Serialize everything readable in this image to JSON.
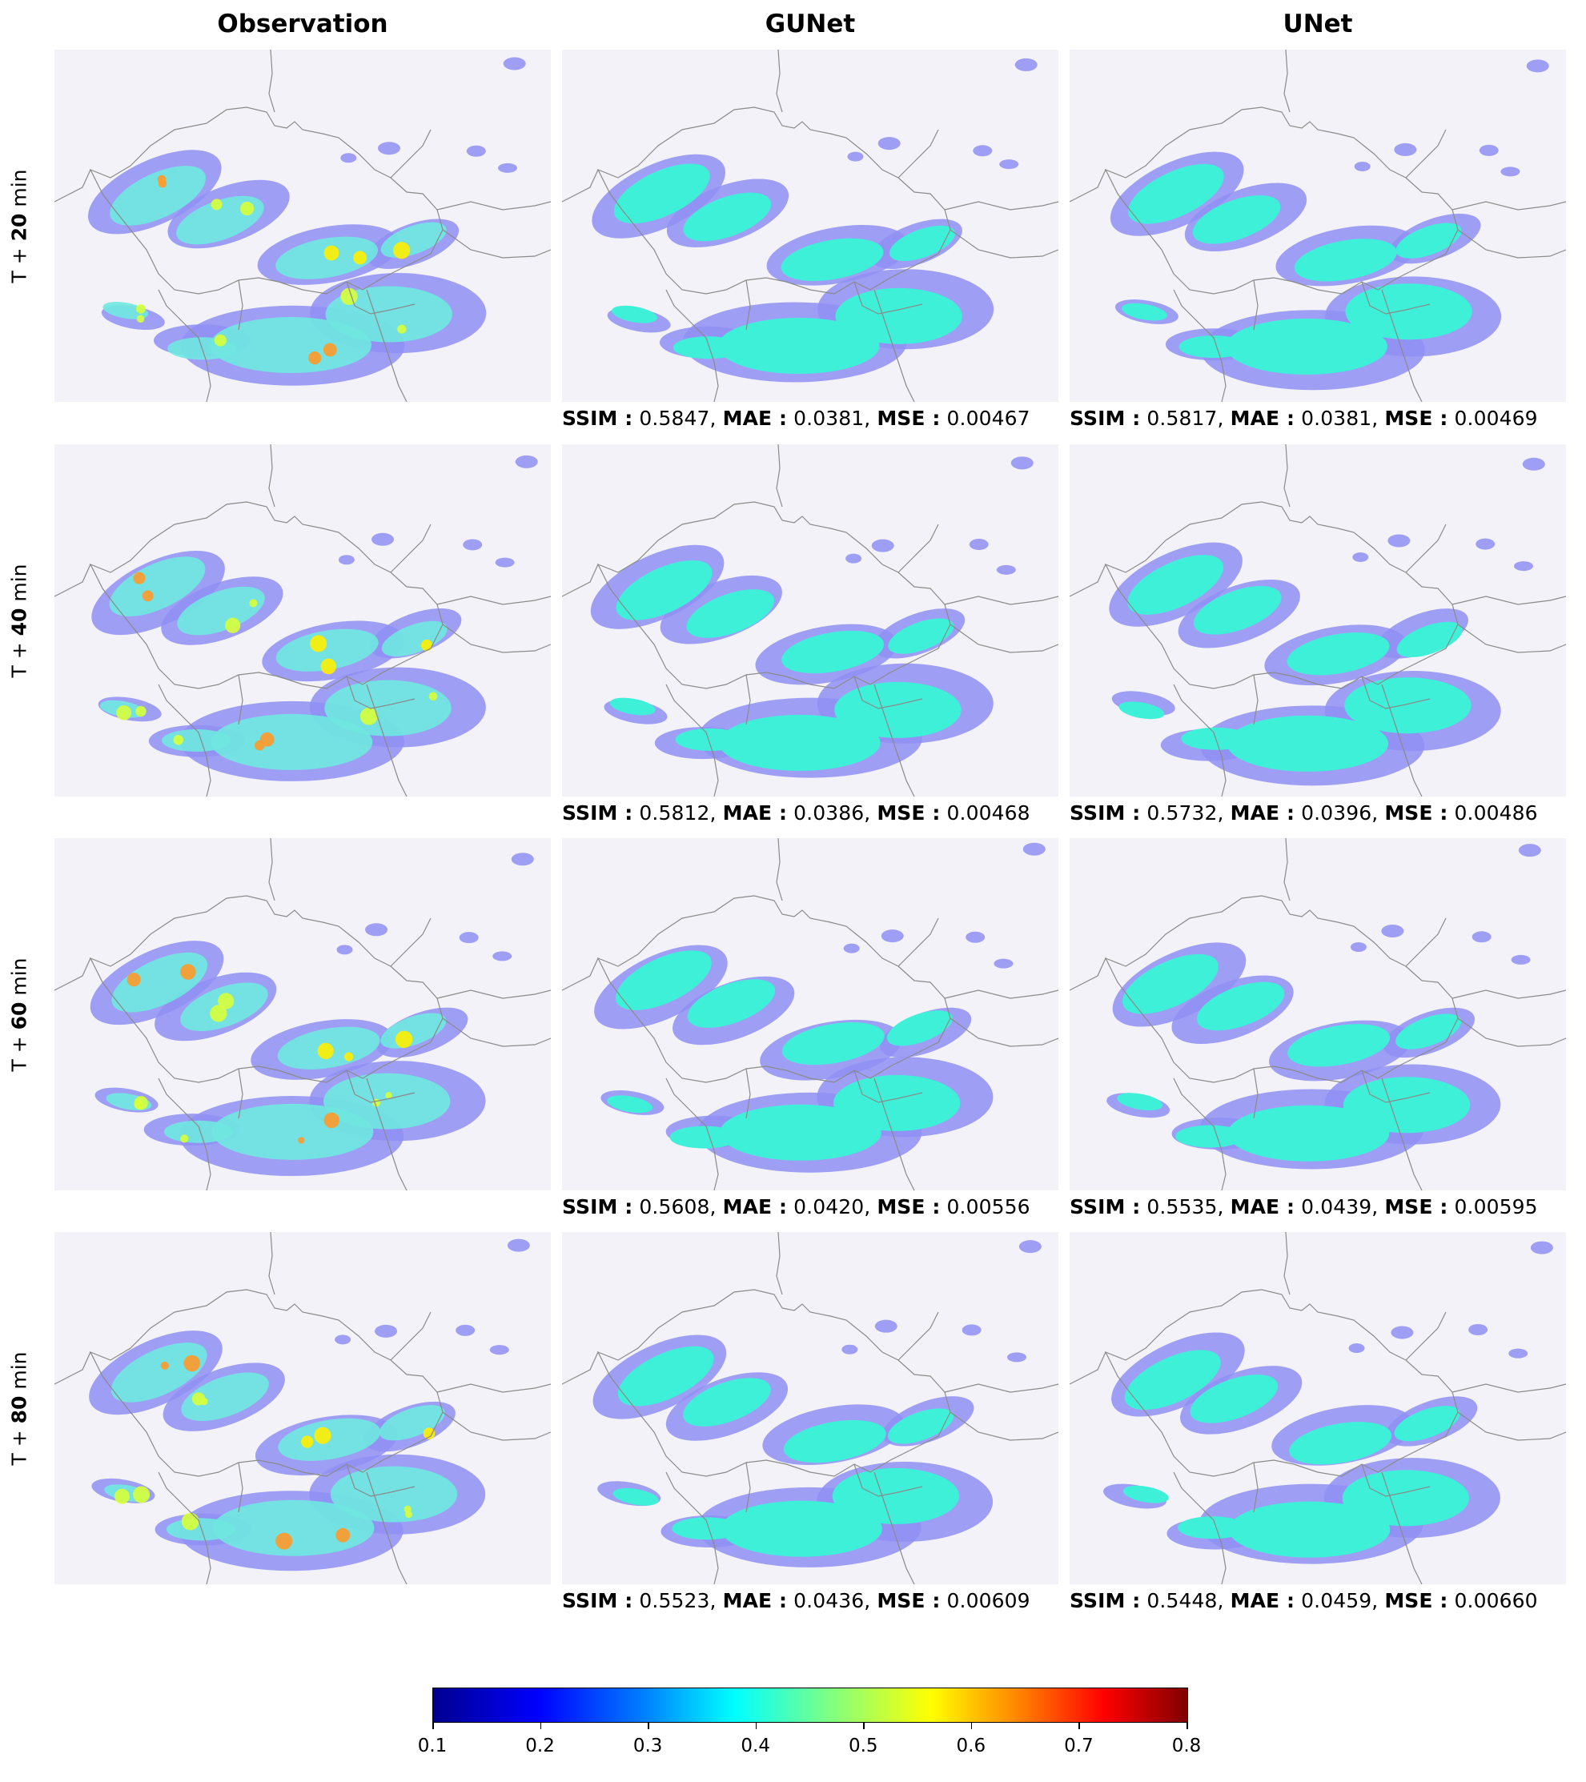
{
  "columns": [
    "Observation",
    "GUNet",
    "UNet"
  ],
  "rows": [
    {
      "prefix": "T + ",
      "value": "20",
      "unit": " min"
    },
    {
      "prefix": "T + ",
      "value": "40",
      "unit": " min"
    },
    {
      "prefix": "T + ",
      "value": "60",
      "unit": " min"
    },
    {
      "prefix": "T + ",
      "value": "80",
      "unit": " min"
    }
  ],
  "metric_labels": {
    "ssim": "SSIM :",
    "mae": "MAE :",
    "mse": "MSE :"
  },
  "metrics": [
    {
      "gunet": {
        "ssim": "0.5847",
        "mae": "0.0381",
        "mse": "0.00467"
      },
      "unet": {
        "ssim": "0.5817",
        "mae": "0.0381",
        "mse": "0.00469"
      }
    },
    {
      "gunet": {
        "ssim": "0.5812",
        "mae": "0.0386",
        "mse": "0.00468"
      },
      "unet": {
        "ssim": "0.5732",
        "mae": "0.0396",
        "mse": "0.00486"
      }
    },
    {
      "gunet": {
        "ssim": "0.5608",
        "mae": "0.0420",
        "mse": "0.00556"
      },
      "unet": {
        "ssim": "0.5535",
        "mae": "0.0439",
        "mse": "0.00595"
      }
    },
    {
      "gunet": {
        "ssim": "0.5523",
        "mae": "0.0436",
        "mse": "0.00609"
      },
      "unet": {
        "ssim": "0.5448",
        "mae": "0.0459",
        "mse": "0.00660"
      }
    }
  ],
  "colorbar": {
    "ticks": [
      "0.1",
      "0.2",
      "0.3",
      "0.4",
      "0.5",
      "0.6",
      "0.7",
      "0.8"
    ],
    "range": [
      0.1,
      0.8
    ],
    "colormap": "jet"
  },
  "colors": {
    "background": "#f3f2f8",
    "border_line": "#8a8a8a",
    "prediction_fill": "#3ff0d8",
    "light_precip": "#8f8ff5"
  }
}
